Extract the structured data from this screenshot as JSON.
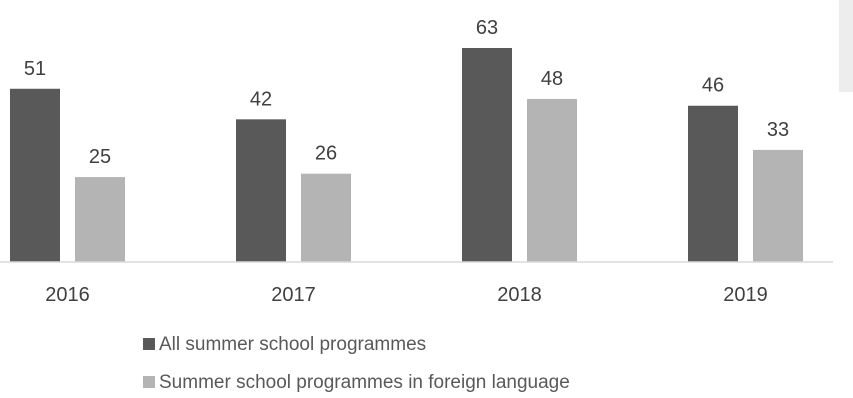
{
  "chart_data": {
    "type": "bar",
    "categories": [
      "2016",
      "2017",
      "2018",
      "2019"
    ],
    "series": [
      {
        "name": "All summer school programmes",
        "values": [
          51,
          42,
          63,
          46
        ],
        "color": "#595959"
      },
      {
        "name": "Summer school programmes in foreign language",
        "values": [
          25,
          26,
          48,
          33
        ],
        "color": "#b4b4b4"
      }
    ],
    "title": "",
    "xlabel": "",
    "ylabel": "",
    "ylim": [
      0,
      63
    ],
    "grid": false,
    "legend_position": "bottom",
    "data_labels": true
  }
}
